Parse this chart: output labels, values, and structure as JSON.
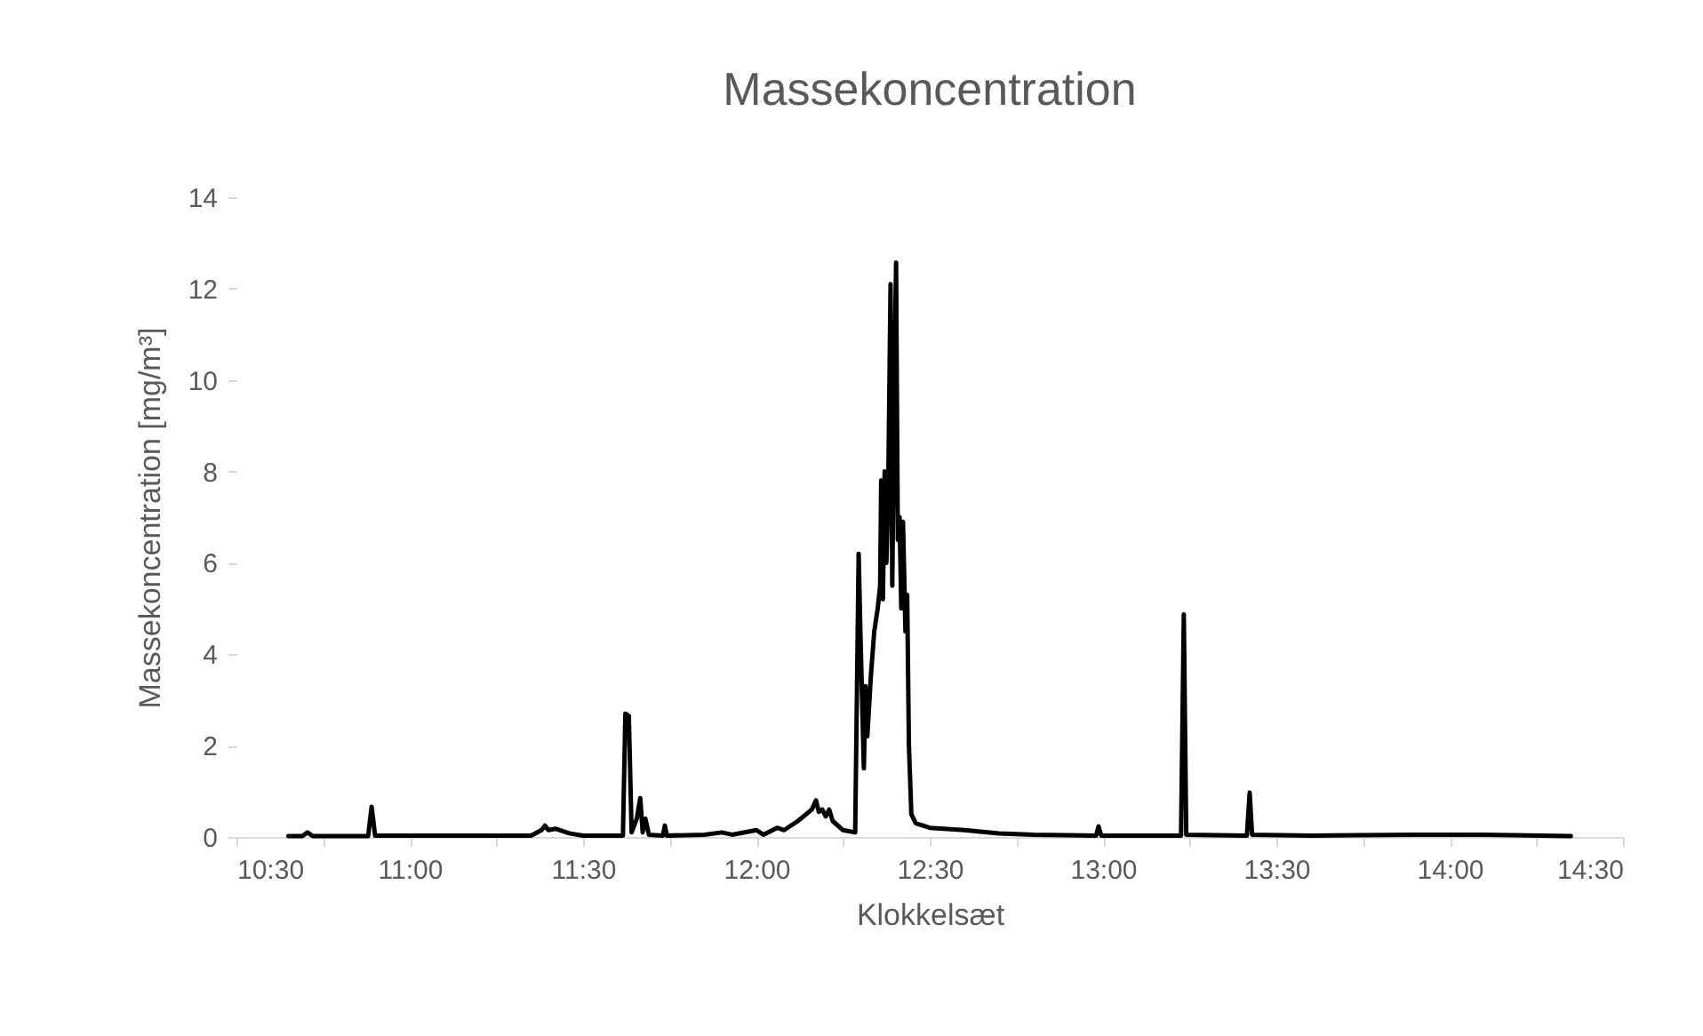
{
  "chart_data": {
    "type": "line",
    "title": "Massekoncentration",
    "xlabel": "Klokkelsæt",
    "ylabel": "Massekoncentration [mg/m³]",
    "xlim": [
      10.5,
      14.5
    ],
    "xticks": [
      {
        "value": 10.5,
        "label": "10:30"
      },
      {
        "value": 10.75,
        "label": null
      },
      {
        "value": 11,
        "label": "11:00"
      },
      {
        "value": 11.25,
        "label": null
      },
      {
        "value": 11.5,
        "label": "11:30"
      },
      {
        "value": 11.75,
        "label": null
      },
      {
        "value": 12,
        "label": "12:00"
      },
      {
        "value": 12.25,
        "label": null
      },
      {
        "value": 12.5,
        "label": "12:30"
      },
      {
        "value": 12.75,
        "label": null
      },
      {
        "value": 13,
        "label": "13:00"
      },
      {
        "value": 13.25,
        "label": null
      },
      {
        "value": 13.5,
        "label": "13:30"
      },
      {
        "value": 13.75,
        "label": null
      },
      {
        "value": 14,
        "label": "14:00"
      },
      {
        "value": 14.25,
        "label": null
      },
      {
        "value": 14.5,
        "label": "14:30"
      }
    ],
    "ylim": [
      0,
      14
    ],
    "yticks": [
      0,
      2,
      4,
      6,
      8,
      10,
      12,
      14
    ],
    "line_style": "solid",
    "marker": "none",
    "series": [
      {
        "color": "#000000",
        "x": [
          10.65,
          10.69,
          10.705,
          10.72,
          10.88,
          10.89,
          10.9,
          11.35,
          11.38,
          11.39,
          11.4,
          11.42,
          11.46,
          11.5,
          11.615,
          11.622,
          11.632,
          11.64,
          11.655,
          11.665,
          11.672,
          11.68,
          11.69,
          11.73,
          11.736,
          11.742,
          11.85,
          11.9,
          11.93,
          12.0,
          12.02,
          12.06,
          12.08,
          12.12,
          12.16,
          12.172,
          12.18,
          12.19,
          12.2,
          12.21,
          12.22,
          12.25,
          12.285,
          12.295,
          12.3,
          12.31,
          12.315,
          12.32,
          12.33,
          12.34,
          12.35,
          12.357,
          12.36,
          12.365,
          12.37,
          12.375,
          12.38,
          12.387,
          12.392,
          12.398,
          12.403,
          12.408,
          12.413,
          12.418,
          12.423,
          12.43,
          12.435,
          12.44,
          12.447,
          12.46,
          12.5,
          12.6,
          12.7,
          12.8,
          12.98,
          12.987,
          12.995,
          13.225,
          13.233,
          13.24,
          13.415,
          13.423,
          13.43,
          13.6,
          13.9,
          14.1,
          14.35
        ],
        "values": [
          0.02,
          0.02,
          0.1,
          0.02,
          0.02,
          0.66,
          0.03,
          0.03,
          0.15,
          0.25,
          0.15,
          0.18,
          0.08,
          0.03,
          0.03,
          2.7,
          2.65,
          0.1,
          0.4,
          0.85,
          0.1,
          0.4,
          0.05,
          0.03,
          0.25,
          0.03,
          0.05,
          0.1,
          0.05,
          0.15,
          0.05,
          0.2,
          0.15,
          0.35,
          0.6,
          0.8,
          0.55,
          0.6,
          0.45,
          0.6,
          0.35,
          0.15,
          0.1,
          6.2,
          4.5,
          1.5,
          3.3,
          2.2,
          3.5,
          4.5,
          5.0,
          5.5,
          7.8,
          5.2,
          8.0,
          6.0,
          7.4,
          12.1,
          5.5,
          10.0,
          12.57,
          6.5,
          7.0,
          5.0,
          6.9,
          4.5,
          5.3,
          2.0,
          0.5,
          0.3,
          0.2,
          0.15,
          0.08,
          0.05,
          0.03,
          0.23,
          0.03,
          0.03,
          4.87,
          0.05,
          0.03,
          0.97,
          0.05,
          0.03,
          0.05,
          0.05,
          0.02
        ]
      }
    ]
  }
}
